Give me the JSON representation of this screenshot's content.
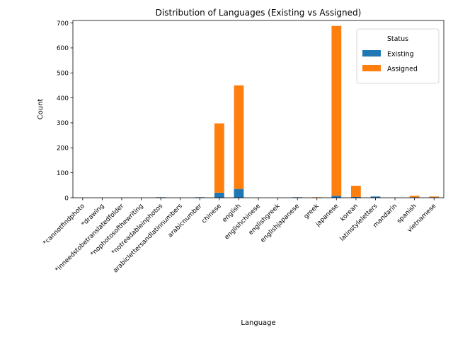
{
  "chart_data": {
    "type": "bar",
    "stacked": true,
    "title": "Distribution of Languages (Existing vs Assigned)",
    "xlabel": "Language",
    "ylabel": "Count",
    "ylim": [
      0,
      710
    ],
    "yticks": [
      0,
      100,
      200,
      300,
      400,
      500,
      600,
      700
    ],
    "categories": [
      "*cannotfindphoto",
      "*drawing",
      "*inneedstobetranslatedfolder",
      "*nophotosofthewriting",
      "*notreadableinphotos",
      "arabiclettersandlatinnumbers",
      "arabicnumber",
      "chinese",
      "english",
      "englishchinese",
      "englishgreek",
      "englishjapanese",
      "greek",
      "japanese",
      "korean",
      "latinstyleletters",
      "mandarin",
      "spanish",
      "vietnamese"
    ],
    "series": [
      {
        "name": "Existing",
        "color": "#1f77b4",
        "values": [
          0,
          0,
          0,
          0,
          2,
          0,
          2,
          20,
          35,
          0,
          0,
          2,
          0,
          8,
          3,
          5,
          0,
          2,
          2
        ]
      },
      {
        "name": "Assigned",
        "color": "#ff7f0e",
        "values": [
          0,
          0,
          0,
          0,
          0,
          0,
          0,
          278,
          415,
          0,
          0,
          0,
          2,
          680,
          45,
          0,
          0,
          6,
          3
        ]
      }
    ],
    "legend": {
      "title": "Status",
      "placement": "upper right"
    },
    "grid": false
  }
}
